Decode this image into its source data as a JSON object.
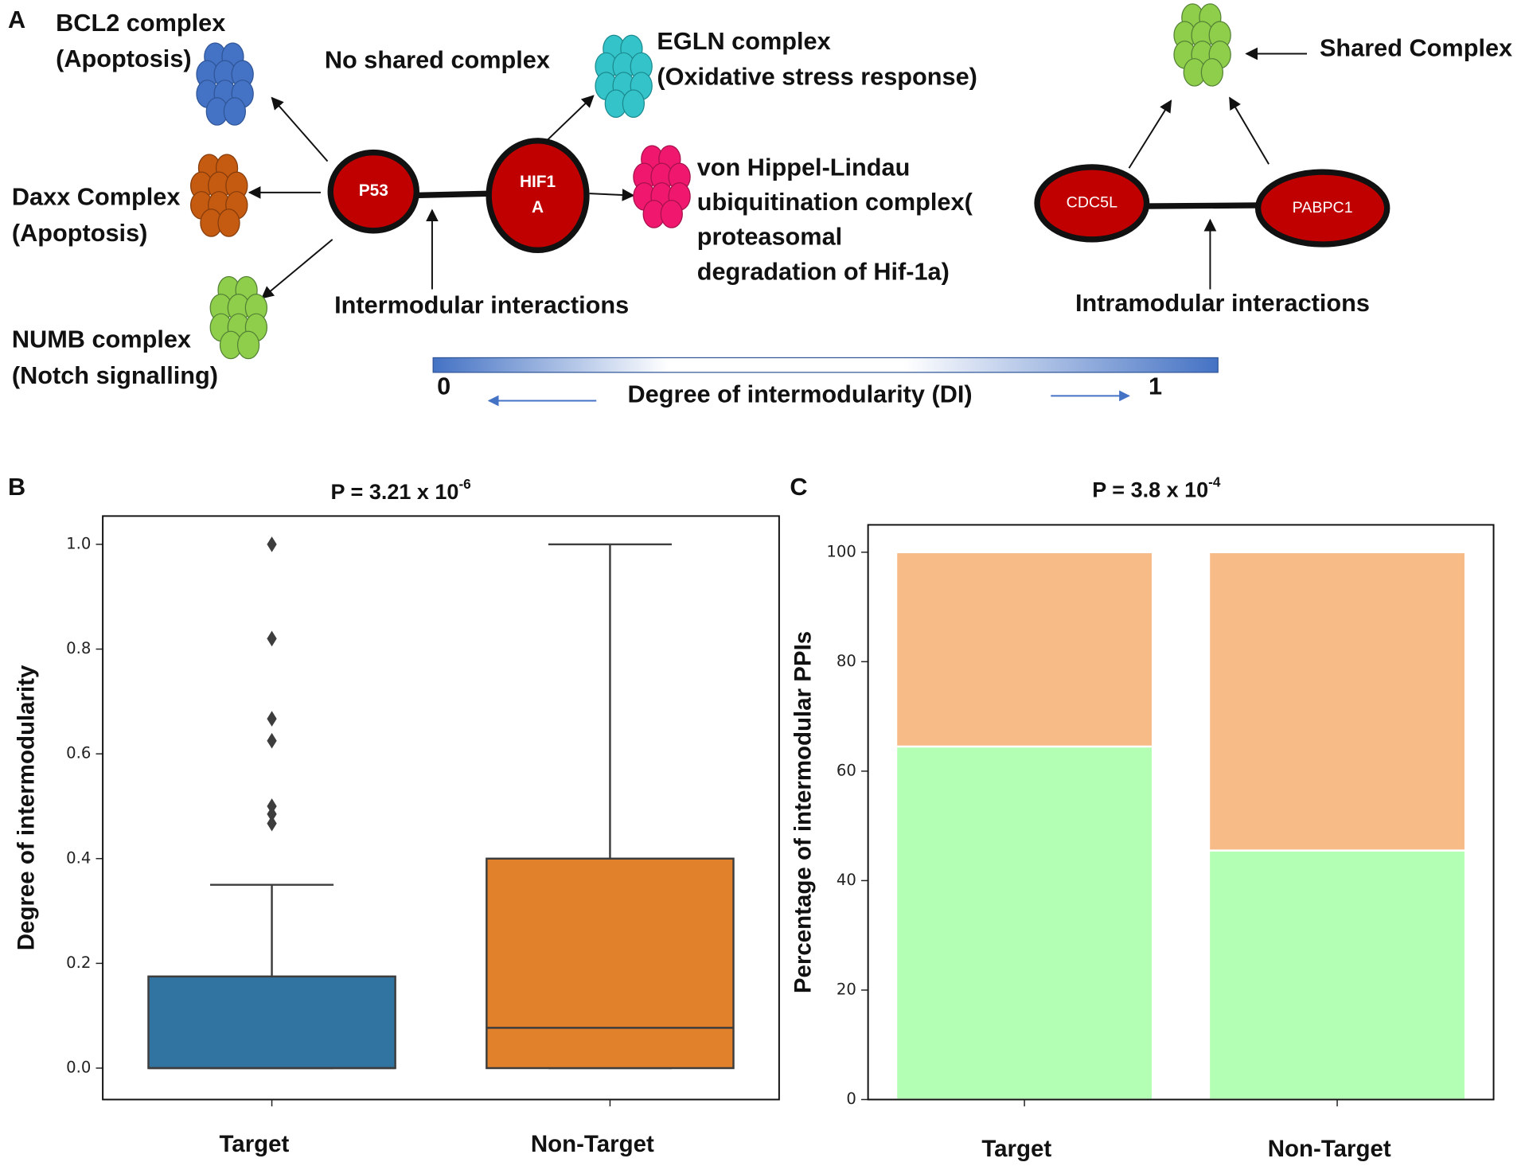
{
  "diagram": {
    "panel_label": "A",
    "labels": [
      {
        "lines": [
          "BCL2 complex",
          "(Apoptosis)"
        ]
      },
      {
        "lines": [
          "Daxx Complex",
          "(Apoptosis)"
        ]
      },
      {
        "lines": [
          "NUMB complex",
          "(Notch signalling)"
        ]
      },
      {
        "lines": [
          "No shared complex"
        ]
      },
      {
        "lines": [
          "EGLN complex",
          "(Oxidative stress response)"
        ]
      },
      {
        "lines": [
          "von Hippel-Lindau",
          "ubiquitination complex(",
          "proteasomal",
          "degradation of Hif-1a)"
        ]
      },
      {
        "lines": [
          "Intermodular interactions"
        ]
      },
      {
        "lines": [
          "Shared Complex"
        ]
      },
      {
        "lines": [
          "Intramodular interactions"
        ]
      }
    ],
    "nodes": [
      {
        "lines": [
          "P53"
        ]
      },
      {
        "lines": [
          "HIF1",
          "A"
        ]
      },
      {
        "lines": [
          "CDC5L"
        ]
      },
      {
        "lines": [
          "PABPC1"
        ]
      }
    ],
    "scale": {
      "min": "0",
      "max": "1",
      "label": "Degree of intermodularity (DI)"
    }
  },
  "chart_data": [
    {
      "type": "box",
      "panel_label": "B",
      "title": {
        "text": "P = 3.21 x 10",
        "exponent": "-6"
      },
      "y_label": "Degree of intermodularity",
      "categories": [
        "Target",
        "Non-Target"
      ],
      "colors": [
        "#3274a1",
        "#e1812c"
      ],
      "stats": [
        {
          "min": 0,
          "q1": 0,
          "median": 0,
          "q3": 0.175,
          "max": 0.35,
          "outliers": [
            1.0,
            0.82,
            0.667,
            0.625,
            0.5,
            0.485,
            0.467
          ]
        },
        {
          "min": 0,
          "q1": 0,
          "median": 0.077,
          "q3": 0.4,
          "max": 1.0,
          "outliers": []
        }
      ],
      "ylim": [
        -0.06,
        1.054
      ],
      "yticks": [
        {
          "value": 0,
          "label": "0.0"
        },
        0.2,
        0.4,
        0.6,
        0.8,
        {
          "value": 1,
          "label": "1.0"
        }
      ]
    },
    {
      "type": "stacked_bar",
      "panel_label": "C",
      "title": {
        "text": "P = 3.8 x 10",
        "exponent": "-4"
      },
      "y_label": "Percentage of intermodular PPIs",
      "categories": [
        "Target",
        "Non-Target"
      ],
      "series": [
        {
          "color": "#b3ffb3",
          "values": [
            64.5,
            45.5
          ]
        },
        {
          "color": "#f7bb88",
          "values": [
            35.5,
            54.5
          ]
        }
      ],
      "ylim": [
        0,
        105
      ],
      "yticks": [
        0,
        20,
        40,
        60,
        80,
        100
      ]
    }
  ]
}
